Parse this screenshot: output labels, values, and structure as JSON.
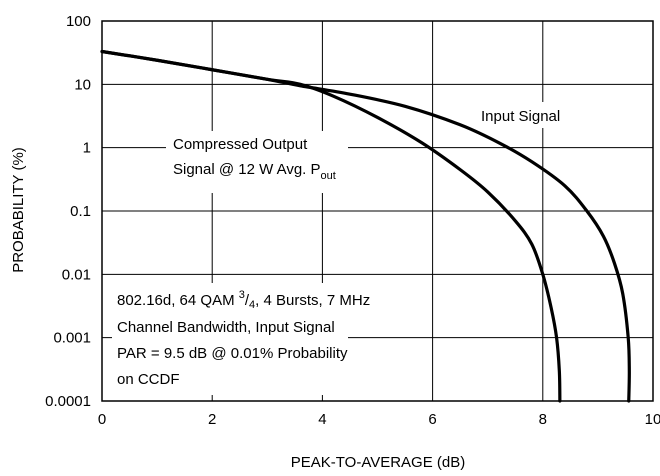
{
  "chart_data": {
    "type": "line",
    "xlabel": "PEAK-TO-AVERAGE (dB)",
    "ylabel": "PROBABILITY (%)",
    "xlim": [
      0,
      10
    ],
    "ylim": [
      0.0001,
      100
    ],
    "yscale": "log",
    "x_ticks": [
      "0",
      "2",
      "4",
      "6",
      "8",
      "10"
    ],
    "y_ticks": [
      "100",
      "10",
      "1",
      "0.1",
      "0.01",
      "0.001",
      "0.0001"
    ],
    "grid": true,
    "series": [
      {
        "name": "Input Signal",
        "x": [
          0,
          1,
          2,
          3,
          3.6,
          4.5,
          5.5,
          6.5,
          7.2,
          7.8,
          8.4,
          8.8,
          9.1,
          9.3,
          9.45,
          9.55,
          9.57,
          9.56
        ],
        "y": [
          33,
          24,
          17,
          12,
          9.5,
          7,
          4.5,
          2.3,
          1.2,
          0.6,
          0.25,
          0.1,
          0.04,
          0.015,
          0.005,
          0.001,
          0.0003,
          0.0001
        ]
      },
      {
        "name": "Compressed Output Signal @ 12 W Avg. Pout",
        "x": [
          0,
          1,
          2,
          3,
          3.6,
          4.2,
          5,
          5.8,
          6.5,
          7,
          7.5,
          7.8,
          8.0,
          8.15,
          8.25,
          8.3,
          8.31
        ],
        "y": [
          33,
          24,
          17,
          12,
          10,
          6.5,
          3,
          1.2,
          0.45,
          0.2,
          0.07,
          0.03,
          0.01,
          0.003,
          0.001,
          0.0003,
          0.0001
        ]
      }
    ],
    "annotations": {
      "input_label": "Input Signal",
      "output_label_line1": "Compressed Output",
      "output_label_line2_prefix": "Signal @ 12 W Avg. P",
      "output_label_line2_sub": "out",
      "note_line1_prefix": "802.16d, 64 QAM ",
      "note_frac_num": "3",
      "note_frac_den": "4",
      "note_line1_suffix": ", 4 Bursts, 7 MHz",
      "note_line2": "Channel Bandwidth, Input Signal",
      "note_line3": "PAR = 9.5 dB @ 0.01% Probability",
      "note_line4": "on CCDF"
    }
  }
}
